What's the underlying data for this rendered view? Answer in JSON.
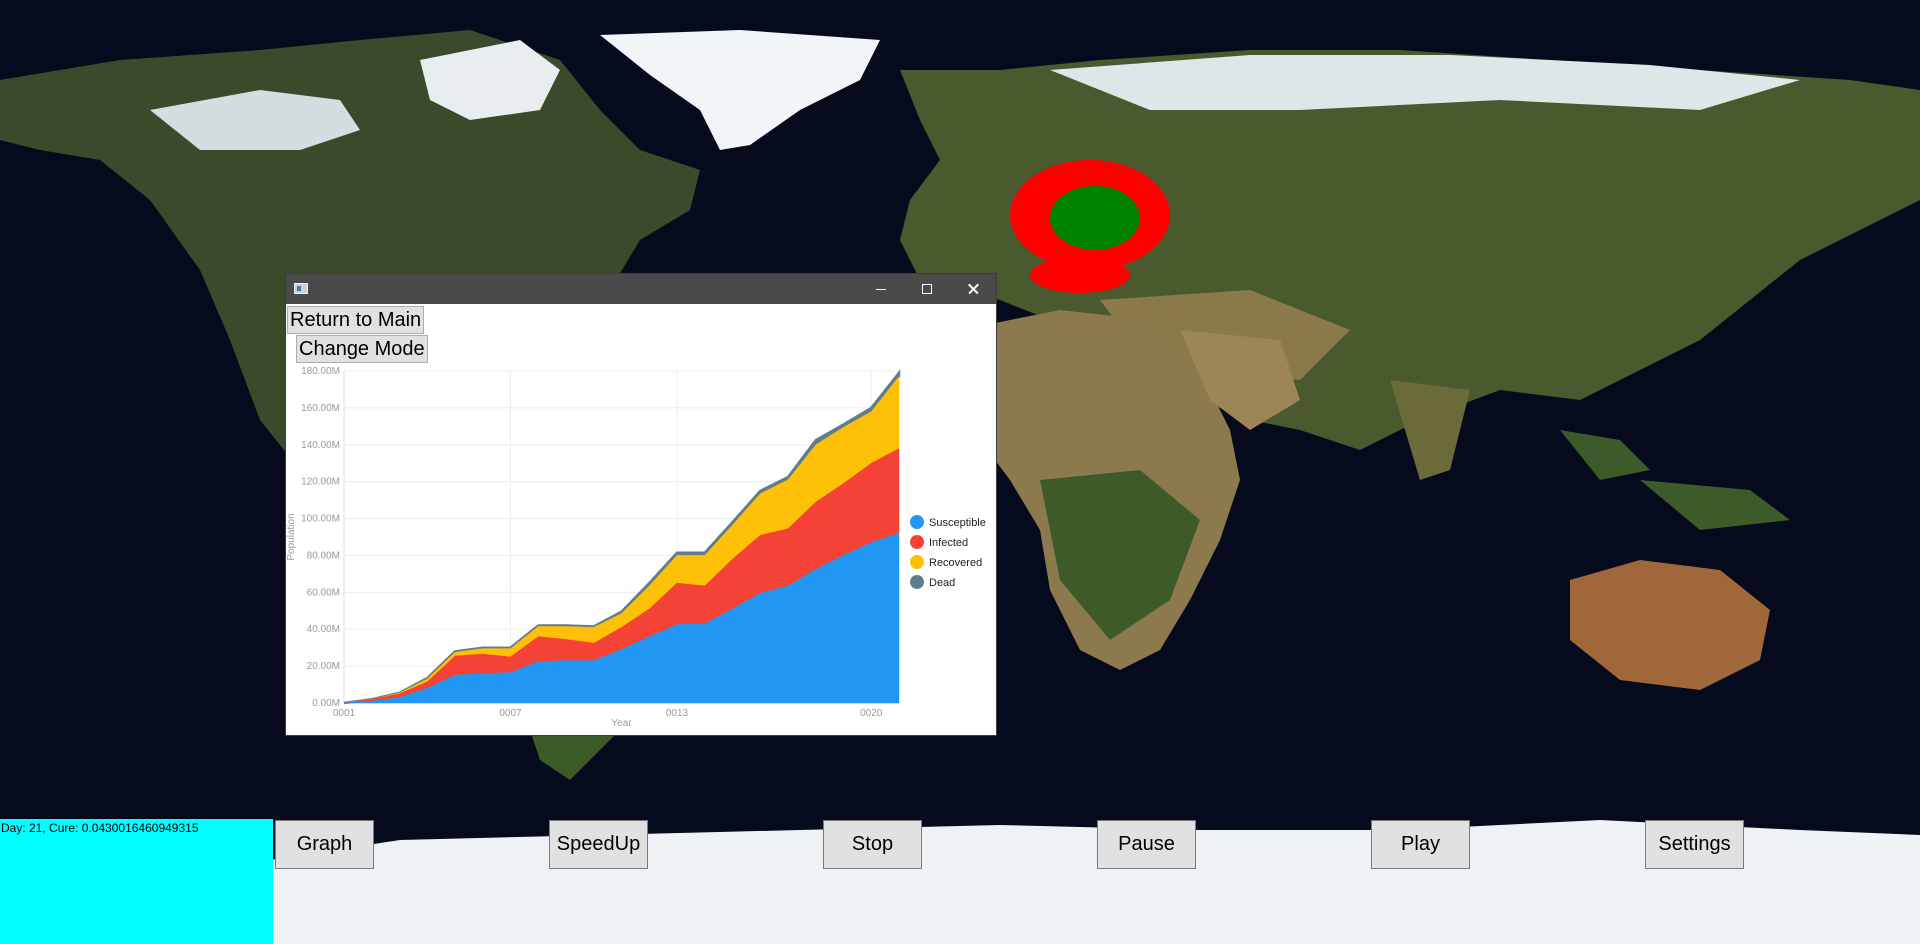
{
  "window": {
    "return_label": "Return to Main",
    "mode_label": "Change Mode"
  },
  "status": {
    "text": "Day: 21, Cure: 0.0430016460949315"
  },
  "controls": [
    {
      "name": "graph-button",
      "label": "Graph"
    },
    {
      "name": "speedup-button",
      "label": "SpeedUp"
    },
    {
      "name": "stop-button",
      "label": "Stop"
    },
    {
      "name": "pause-button",
      "label": "Pause"
    },
    {
      "name": "play-button",
      "label": "Play"
    },
    {
      "name": "settings-button",
      "label": "Settings"
    }
  ],
  "colors": {
    "susceptible": "#2196f3",
    "infected": "#f44336",
    "recovered": "#ffc107",
    "dead": "#607d8b",
    "status_panel": "#00ffff",
    "infection_zone": "#ff0000",
    "recovery_zone": "#008000"
  },
  "chart_data": {
    "type": "area",
    "stacked": true,
    "xlabel": "Year",
    "ylabel": "Population",
    "ylim": [
      0,
      180000000
    ],
    "y_tick_labels": [
      "0.00M",
      "20.00M",
      "40.00M",
      "60.00M",
      "80.00M",
      "100.00M",
      "120.00M",
      "140.00M",
      "160.00M",
      "180.00M"
    ],
    "x": [
      "0001",
      "0002",
      "0003",
      "0004",
      "0005",
      "0006",
      "0007",
      "0008",
      "0009",
      "0010",
      "0011",
      "0012",
      "0013",
      "0014",
      "0015",
      "0016",
      "0017",
      "0018",
      "0019",
      "0020",
      "0021"
    ],
    "x_tick_labels": [
      "0001",
      "0007",
      "0013",
      "0020"
    ],
    "legend_position": "right",
    "series": [
      {
        "name": "Susceptible",
        "values": [
          0,
          1000000,
          3000000,
          8000000,
          15000000,
          16000000,
          16500000,
          22500000,
          23000000,
          23000000,
          29000000,
          36000000,
          42500000,
          43000000,
          51000000,
          59500000,
          63500000,
          72500000,
          80000000,
          87000000,
          92000000
        ]
      },
      {
        "name": "Infected",
        "values": [
          0,
          1000000,
          2000000,
          3500000,
          10500000,
          10500000,
          8500000,
          13500000,
          11500000,
          9500000,
          12000000,
          15000000,
          22500000,
          20500000,
          27000000,
          31500000,
          31000000,
          36500000,
          39000000,
          43000000,
          46000000
        ]
      },
      {
        "name": "Recovered",
        "values": [
          0,
          0,
          500000,
          1500000,
          2000000,
          3000000,
          4500000,
          5500000,
          7000000,
          8500000,
          7500000,
          12500000,
          15000000,
          16500000,
          18500000,
          22500000,
          26500000,
          31000000,
          30500000,
          28000000,
          39000000
        ]
      },
      {
        "name": "Dead",
        "values": [
          0,
          0,
          0,
          500000,
          500000,
          500000,
          500000,
          500000,
          500000,
          500000,
          1000000,
          1500000,
          1500000,
          1500000,
          1500000,
          1500000,
          1500000,
          2500000,
          1500000,
          2000000,
          2000000
        ]
      }
    ]
  }
}
